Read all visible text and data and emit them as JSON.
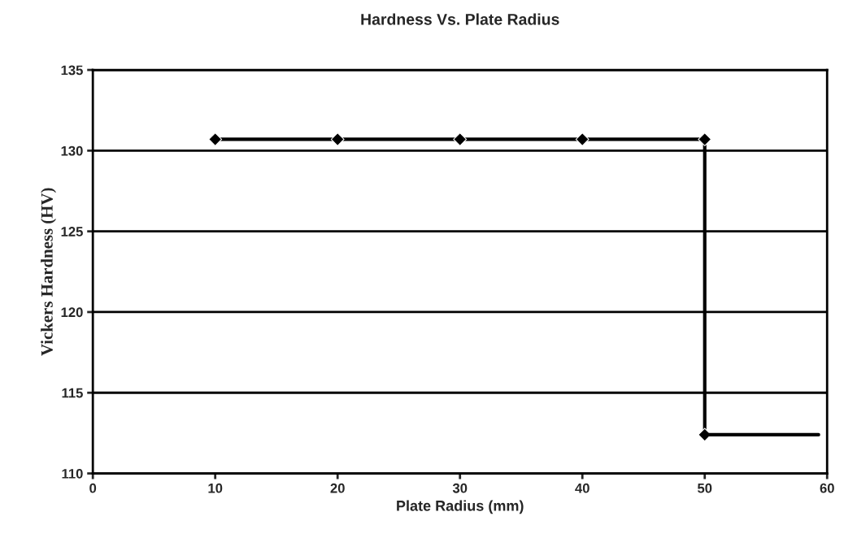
{
  "chart_data": {
    "type": "line",
    "title": "Hardness Vs. Plate Radius",
    "xlabel": "Plate Radius (mm)",
    "ylabel": "Vickers Hardness (HV)",
    "series": [
      {
        "color": "#000000",
        "x": [
          10,
          20,
          30,
          40,
          50,
          50
        ],
        "values": [
          130.7,
          130.7,
          130.7,
          130.7,
          130.7,
          112.4
        ],
        "marker": "diamond"
      },
      {
        "color": "#000000",
        "x": [
          50,
          59.3
        ],
        "values": [
          112.4,
          112.4
        ],
        "marker": "none"
      }
    ],
    "xlim": [
      0,
      60
    ],
    "xticks": [
      0,
      10,
      20,
      30,
      40,
      50,
      60
    ],
    "ylim": [
      110,
      135
    ],
    "yticks": [
      110,
      115,
      120,
      125,
      130,
      135
    ],
    "grid": "y",
    "line_style": "solid"
  }
}
